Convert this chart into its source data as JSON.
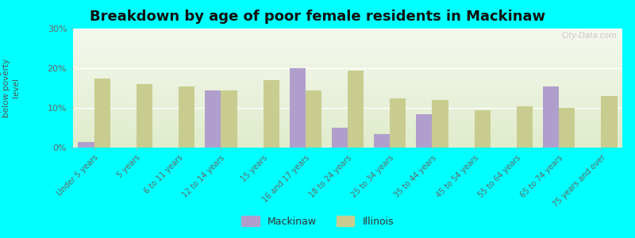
{
  "title": "Breakdown by age of poor female residents in Mackinaw",
  "ylabel": "percentage\nbelow poverty\nlevel",
  "categories": [
    "Under 5 years",
    "5 years",
    "6 to 11 years",
    "12 to 14 years",
    "15 years",
    "16 and 17 years",
    "18 to 24 years",
    "25 to 34 years",
    "35 to 44 years",
    "45 to 54 years",
    "55 to 64 years",
    "65 to 74 years",
    "75 years and over"
  ],
  "mackinaw": [
    1.5,
    0,
    0,
    14.5,
    0,
    20.0,
    5.0,
    3.5,
    8.5,
    0,
    0,
    15.5,
    0
  ],
  "illinois": [
    17.5,
    16.0,
    15.5,
    14.5,
    17.0,
    14.5,
    19.5,
    12.5,
    12.0,
    9.5,
    10.5,
    10.0,
    13.0
  ],
  "mackinaw_color": "#b09fcc",
  "illinois_color": "#c8cc8f",
  "background_color": "#00ffff",
  "bg_top": "#f5f8ee",
  "bg_bottom": "#e0eccc",
  "ylim": [
    0,
    30
  ],
  "yticks": [
    0,
    10,
    20,
    30
  ],
  "ytick_labels": [
    "0%",
    "10%",
    "20%",
    "30%"
  ],
  "title_fontsize": 13,
  "label_fontsize": 8,
  "bar_width": 0.38
}
